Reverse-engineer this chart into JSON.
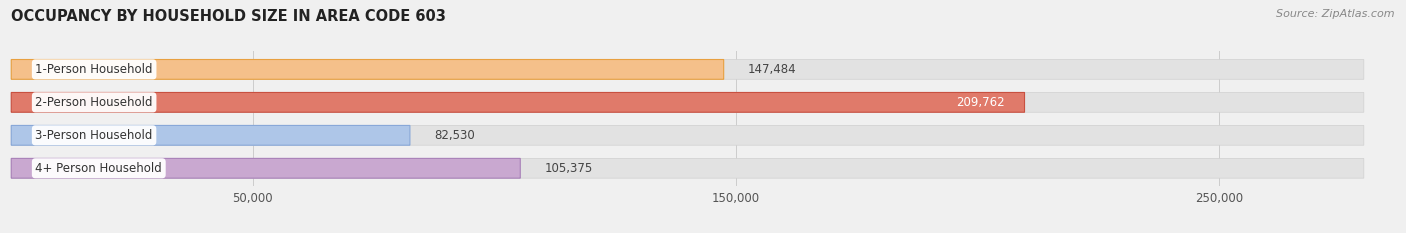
{
  "title": "OCCUPANCY BY HOUSEHOLD SIZE IN AREA CODE 603",
  "source": "Source: ZipAtlas.com",
  "categories": [
    "1-Person Household",
    "2-Person Household",
    "3-Person Household",
    "4+ Person Household"
  ],
  "values": [
    147484,
    209762,
    82530,
    105375
  ],
  "bar_colors": [
    "#f5c08a",
    "#e07a6a",
    "#aec6e8",
    "#c9a8d0"
  ],
  "bar_edge_colors": [
    "#e8a040",
    "#c85040",
    "#88a8d8",
    "#a880b8"
  ],
  "background_color": "#f0f0f0",
  "bar_bg_color": "#e2e2e2",
  "bar_bg_edge_color": "#d0d0d0",
  "xlim": [
    0,
    280000
  ],
  "xticks": [
    50000,
    150000,
    250000
  ],
  "xtick_labels": [
    "50,000",
    "150,000",
    "250,000"
  ],
  "figsize": [
    14.06,
    2.33
  ],
  "dpi": 100
}
